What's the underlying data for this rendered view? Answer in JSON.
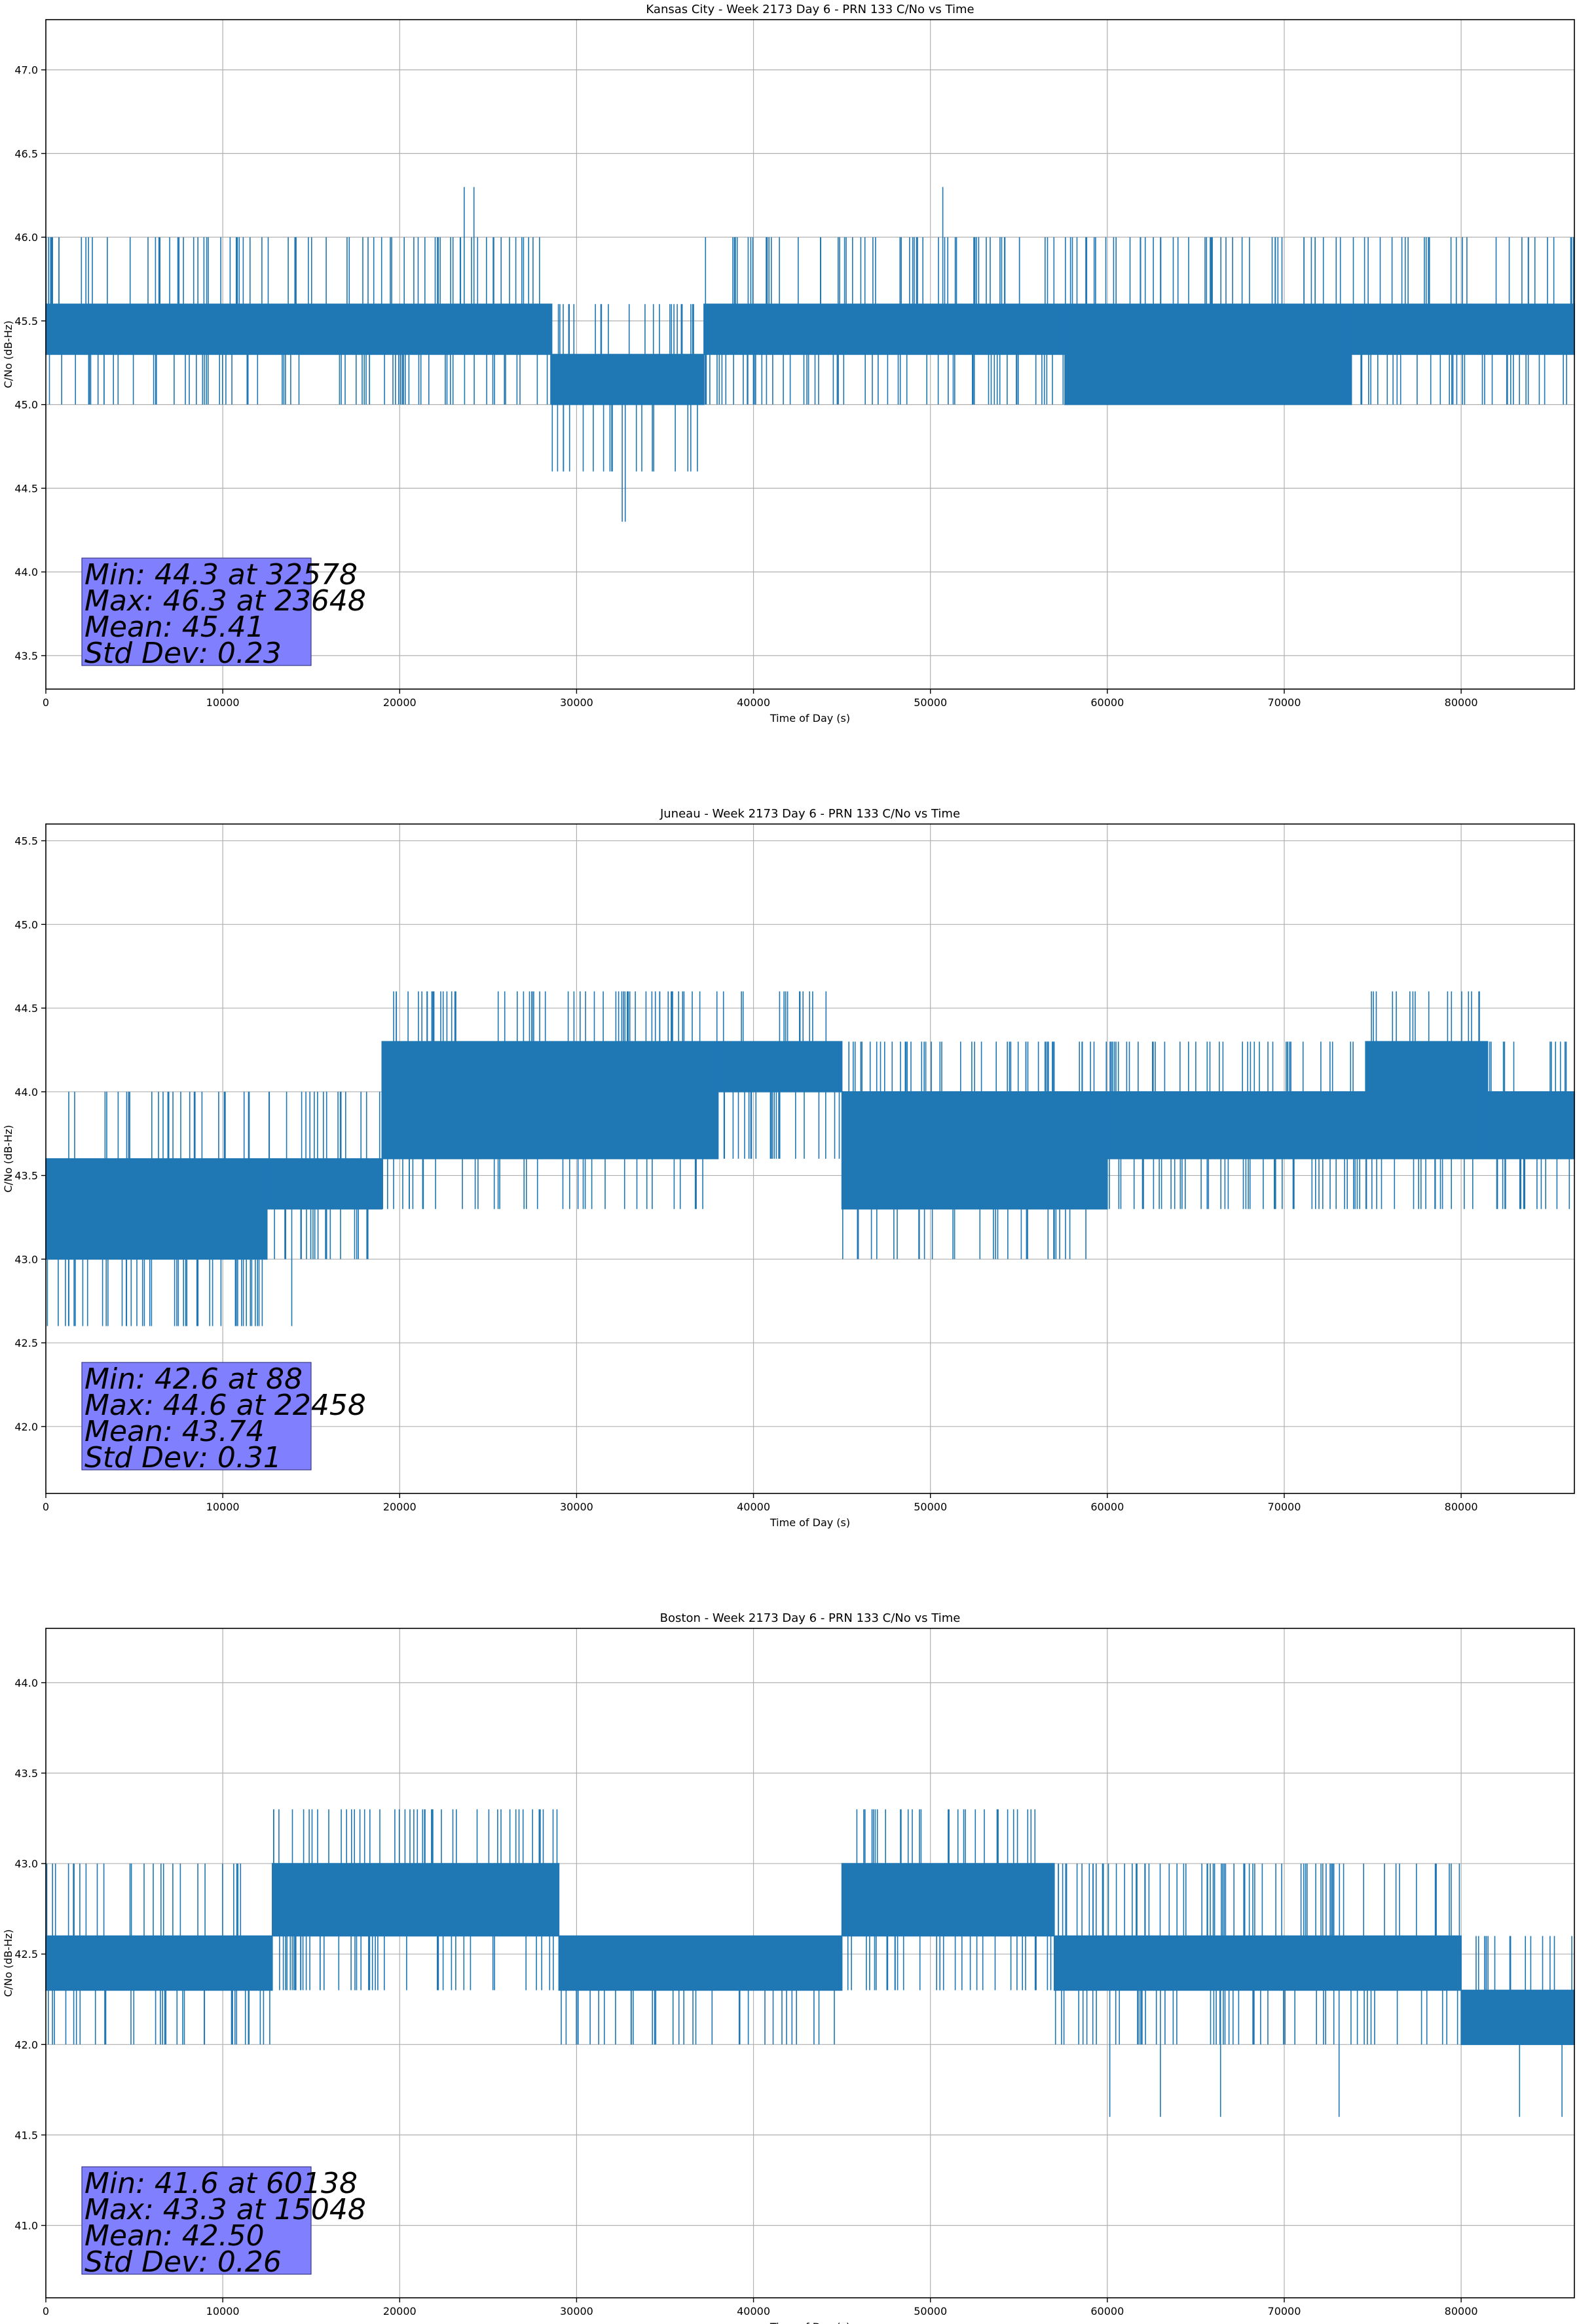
{
  "colors": {
    "series": "#1f77b4",
    "stats_box": "#8080ff",
    "grid": "#b0b0b0"
  },
  "chart_data": [
    {
      "type": "line",
      "title": "Kansas City - Week 2173 Day 6 - PRN 133 C/No vs Time",
      "xlabel": "Time of Day (s)",
      "ylabel": "C/No (dB-Hz)",
      "xlim": [
        0,
        86400
      ],
      "ylim": [
        43.3,
        47.3
      ],
      "xticks": [
        0,
        10000,
        20000,
        30000,
        40000,
        50000,
        60000,
        70000,
        80000
      ],
      "yticks": [
        43.5,
        44.0,
        44.5,
        45.0,
        45.5,
        46.0,
        46.5,
        47.0
      ],
      "grid": true,
      "stats": [
        "Min: 44.3 at 32578",
        "Max: 46.3 at 23648",
        "Mean: 45.41",
        "Std Dev: 0.23"
      ],
      "segments": [
        {
          "x": [
            0,
            28600
          ],
          "band": [
            45.3,
            45.6
          ],
          "spikes_high": [
            45.0,
            46.0
          ],
          "extreme": []
        },
        {
          "x": [
            28600,
            37200
          ],
          "band": [
            45.0,
            45.3
          ],
          "spikes_high": [
            44.6,
            45.6
          ],
          "extreme": []
        },
        {
          "x": [
            37200,
            57600
          ],
          "band": [
            45.3,
            45.6
          ],
          "spikes_high": [
            45.0,
            46.0
          ],
          "extreme": []
        },
        {
          "x": [
            57600,
            73800
          ],
          "band": [
            45.0,
            45.6
          ],
          "spikes_high": [
            45.0,
            46.0
          ],
          "extreme": []
        },
        {
          "x": [
            73800,
            86400
          ],
          "band": [
            45.3,
            45.6
          ],
          "spikes_high": [
            45.0,
            46.0
          ],
          "extreme": []
        }
      ],
      "notable_points": [
        {
          "x": 32578,
          "y": 44.3
        },
        {
          "x": 32750,
          "y": 44.3
        },
        {
          "x": 23648,
          "y": 46.3
        },
        {
          "x": 24200,
          "y": 46.3
        },
        {
          "x": 50700,
          "y": 46.3
        }
      ]
    },
    {
      "type": "line",
      "title": "Juneau - Week 2173 Day 6 - PRN 133 C/No vs Time",
      "xlabel": "Time of Day (s)",
      "ylabel": "C/No (dB-Hz)",
      "xlim": [
        0,
        86400
      ],
      "ylim": [
        41.6,
        45.6
      ],
      "xticks": [
        0,
        10000,
        20000,
        30000,
        40000,
        50000,
        60000,
        70000,
        80000
      ],
      "yticks": [
        42.0,
        42.5,
        43.0,
        43.5,
        44.0,
        44.5,
        45.0,
        45.5
      ],
      "grid": true,
      "stats": [
        "Min: 42.6 at 88",
        "Max: 44.6 at 22458",
        "Mean: 43.74",
        "Std Dev: 0.31"
      ],
      "segments": [
        {
          "x": [
            0,
            12500
          ],
          "band": [
            43.0,
            43.6
          ],
          "spikes_high": [
            42.6,
            44.0
          ],
          "extreme": []
        },
        {
          "x": [
            12500,
            19000
          ],
          "band": [
            43.3,
            43.6
          ],
          "spikes_high": [
            43.0,
            44.0
          ],
          "extreme": []
        },
        {
          "x": [
            19000,
            38000
          ],
          "band": [
            43.6,
            44.3
          ],
          "spikes_high": [
            43.3,
            44.6
          ],
          "extreme": []
        },
        {
          "x": [
            38000,
            45000
          ],
          "band": [
            44.0,
            44.3
          ],
          "spikes_high": [
            43.6,
            44.6
          ],
          "extreme": []
        },
        {
          "x": [
            45000,
            60000
          ],
          "band": [
            43.3,
            44.0
          ],
          "spikes_high": [
            43.0,
            44.3
          ],
          "extreme": []
        },
        {
          "x": [
            60000,
            74600
          ],
          "band": [
            43.6,
            44.0
          ],
          "spikes_high": [
            43.3,
            44.3
          ],
          "extreme": []
        },
        {
          "x": [
            74600,
            81500
          ],
          "band": [
            43.6,
            44.3
          ],
          "spikes_high": [
            43.3,
            44.6
          ],
          "extreme": []
        },
        {
          "x": [
            81500,
            86400
          ],
          "band": [
            43.6,
            44.0
          ],
          "spikes_high": [
            43.3,
            44.3
          ],
          "extreme": []
        }
      ],
      "notable_points": [
        {
          "x": 88,
          "y": 42.6
        },
        {
          "x": 700,
          "y": 42.6
        },
        {
          "x": 1300,
          "y": 42.6
        },
        {
          "x": 13900,
          "y": 42.6
        },
        {
          "x": 22458,
          "y": 44.6
        },
        {
          "x": 30200,
          "y": 44.6
        },
        {
          "x": 42600,
          "y": 44.6
        },
        {
          "x": 44100,
          "y": 44.6
        },
        {
          "x": 77400,
          "y": 44.6
        },
        {
          "x": 52800,
          "y": 43.0
        }
      ]
    },
    {
      "type": "line",
      "title": "Boston - Week 2173 Day 6 - PRN 133 C/No vs Time",
      "xlabel": "Time of Day (s)",
      "ylabel": "C/No (dB-Hz)",
      "xlim": [
        0,
        86400
      ],
      "ylim": [
        40.6,
        44.3
      ],
      "xticks": [
        0,
        10000,
        20000,
        30000,
        40000,
        50000,
        60000,
        70000,
        80000
      ],
      "yticks": [
        41.0,
        41.5,
        42.0,
        42.5,
        43.0,
        43.5,
        44.0
      ],
      "grid": true,
      "stats": [
        "Min: 41.6 at 60138",
        "Max: 43.3 at 15048",
        "Mean: 42.50",
        "Std Dev: 0.26"
      ],
      "segments": [
        {
          "x": [
            0,
            12800
          ],
          "band": [
            42.3,
            42.6
          ],
          "spikes_high": [
            42.0,
            43.0
          ],
          "extreme": []
        },
        {
          "x": [
            12800,
            29000
          ],
          "band": [
            42.6,
            43.0
          ],
          "spikes_high": [
            42.3,
            43.3
          ],
          "extreme": []
        },
        {
          "x": [
            29000,
            45000
          ],
          "band": [
            42.3,
            42.6
          ],
          "spikes_high": [
            42.0,
            42.6
          ],
          "extreme": []
        },
        {
          "x": [
            45000,
            57000
          ],
          "band": [
            42.6,
            43.0
          ],
          "spikes_high": [
            42.3,
            43.3
          ],
          "extreme": []
        },
        {
          "x": [
            57000,
            80000
          ],
          "band": [
            42.3,
            42.6
          ],
          "spikes_high": [
            42.0,
            43.0
          ],
          "extreme": []
        },
        {
          "x": [
            80000,
            86400
          ],
          "band": [
            42.0,
            42.3
          ],
          "spikes_high": [
            42.0,
            42.6
          ],
          "extreme": []
        }
      ],
      "notable_points": [
        {
          "x": 60138,
          "y": 41.6
        },
        {
          "x": 63000,
          "y": 41.6
        },
        {
          "x": 66400,
          "y": 41.6
        },
        {
          "x": 73100,
          "y": 41.6
        },
        {
          "x": 83300,
          "y": 41.6
        },
        {
          "x": 85700,
          "y": 41.6
        },
        {
          "x": 15048,
          "y": 43.3
        },
        {
          "x": 20300,
          "y": 43.3
        },
        {
          "x": 47000,
          "y": 43.3
        },
        {
          "x": 54700,
          "y": 43.3
        }
      ]
    }
  ]
}
